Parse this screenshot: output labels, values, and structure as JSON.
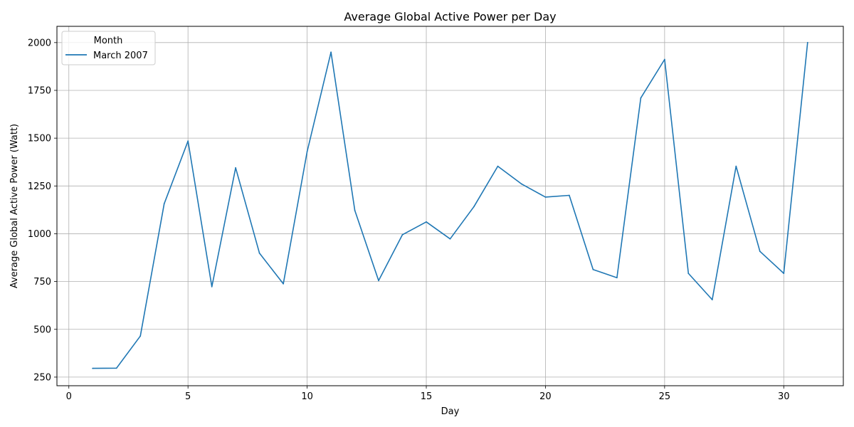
{
  "chart_data": {
    "type": "line",
    "title": "Average Global Active Power per Day",
    "xlabel": "Day",
    "ylabel": "Average Global Active Power (Watt)",
    "xlim": [
      -0.5,
      32.5
    ],
    "ylim": [
      205,
      2085
    ],
    "xticks": [
      0,
      5,
      10,
      15,
      20,
      25,
      30
    ],
    "yticks": [
      250,
      500,
      750,
      1000,
      1250,
      1500,
      1750,
      2000
    ],
    "grid": true,
    "legend": {
      "title": "Month",
      "position": "top-left"
    },
    "series": [
      {
        "name": "March 2007",
        "color": "#1f77b4",
        "x": [
          1,
          2,
          3,
          4,
          5,
          6,
          7,
          8,
          9,
          10,
          11,
          12,
          13,
          14,
          15,
          16,
          17,
          18,
          19,
          20,
          21,
          22,
          23,
          24,
          25,
          26,
          27,
          28,
          29,
          30,
          31
        ],
        "y": [
          296,
          297,
          465,
          1157,
          1485,
          723,
          1345,
          898,
          738,
          1430,
          1950,
          1122,
          755,
          995,
          1062,
          973,
          1142,
          1353,
          1260,
          1192,
          1201,
          813,
          770,
          1710,
          1912,
          793,
          655,
          1353,
          908,
          793,
          2000
        ]
      }
    ]
  }
}
